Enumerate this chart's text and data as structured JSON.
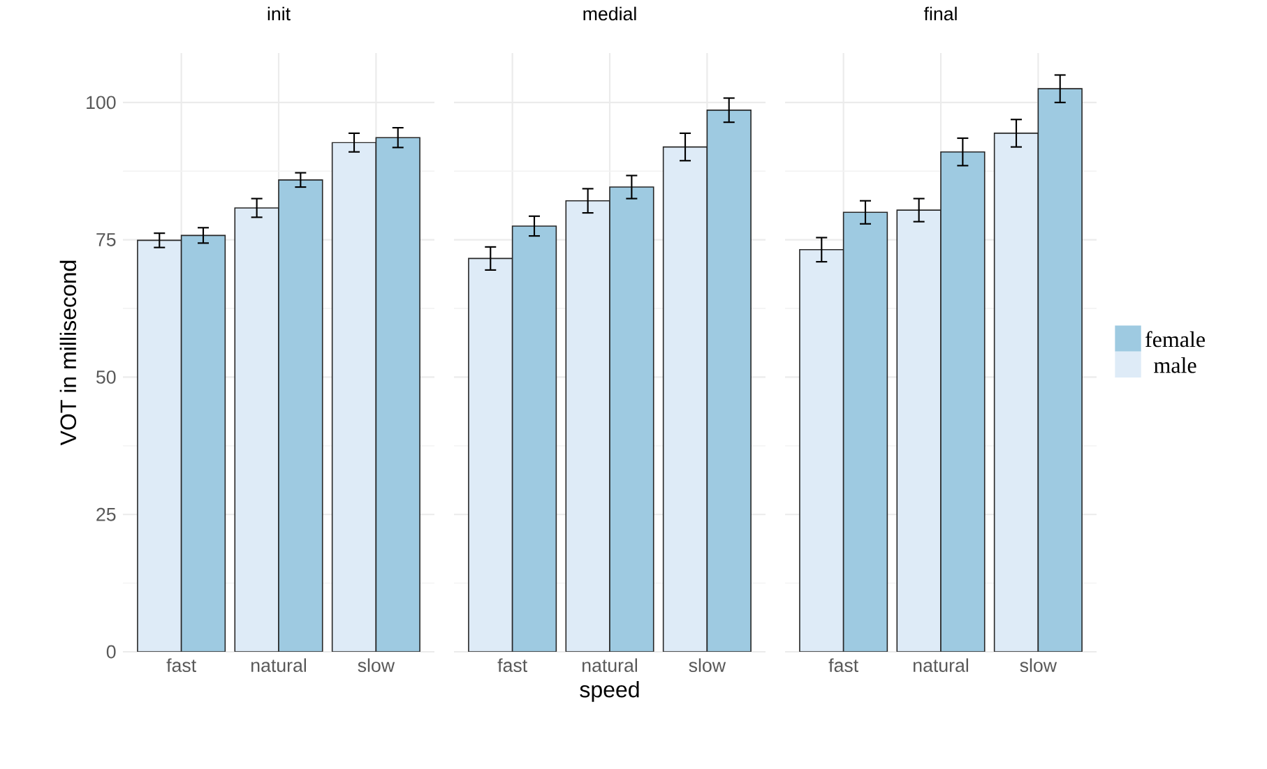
{
  "chart_data": [
    {
      "type": "bar",
      "title": "init",
      "ylabel": "VOT in millisecond",
      "categories": [
        "fast",
        "natural",
        "slow"
      ],
      "series": [
        {
          "color": "#deebf7",
          "values": [
            74.9,
            80.8,
            92.7
          ],
          "errors": [
            1.3,
            1.7,
            1.7
          ]
        },
        {
          "color": "#9ecae1",
          "values": [
            75.8,
            85.9,
            93.6
          ],
          "errors": [
            1.4,
            1.3,
            1.8
          ]
        }
      ],
      "ylim": [
        0,
        109
      ],
      "yticks": [
        0,
        25,
        50,
        75,
        100
      ],
      "grid": true
    },
    {
      "type": "bar",
      "title": "medial",
      "xlabel": "speed",
      "categories": [
        "fast",
        "natural",
        "slow"
      ],
      "series": [
        {
          "color": "#deebf7",
          "values": [
            71.6,
            82.1,
            91.9
          ],
          "errors": [
            2.1,
            2.2,
            2.5
          ]
        },
        {
          "color": "#9ecae1",
          "values": [
            77.5,
            84.6,
            98.6
          ],
          "errors": [
            1.8,
            2.1,
            2.2
          ]
        }
      ],
      "ylim": [
        0,
        109
      ],
      "yticks": [
        0,
        25,
        50,
        75,
        100
      ],
      "grid": true,
      "tick_labels": "x"
    },
    {
      "type": "bar",
      "title": "final",
      "categories": [
        "fast",
        "natural",
        "slow"
      ],
      "series": [
        {
          "name": "male",
          "color": "#deebf7",
          "values": [
            73.2,
            80.4,
            94.4
          ],
          "errors": [
            2.2,
            2.1,
            2.5
          ]
        },
        {
          "name": "female",
          "color": "#9ecae1",
          "values": [
            80.0,
            91.0,
            102.5
          ],
          "errors": [
            2.1,
            2.5,
            2.5
          ]
        }
      ],
      "ylim": [
        0,
        109
      ],
      "yticks": [
        0,
        25,
        50,
        75,
        100
      ],
      "grid": true,
      "tick_labels": "x",
      "legend": "right"
    }
  ]
}
